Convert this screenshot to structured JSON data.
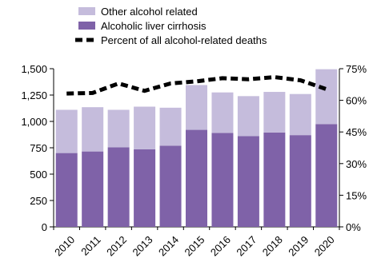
{
  "chart_data": {
    "type": "bar",
    "stacked": true,
    "categories": [
      "2010",
      "2011",
      "2012",
      "2013",
      "2014",
      "2015",
      "2016",
      "2017",
      "2018",
      "2019",
      "2020"
    ],
    "series": [
      {
        "name": "Alcoholic liver cirrhosis",
        "type": "bar",
        "axis": "left",
        "color": "#7f62a8",
        "values": [
          700,
          715,
          755,
          735,
          770,
          920,
          890,
          860,
          895,
          870,
          975
        ]
      },
      {
        "name": "Other alcohol related",
        "type": "bar",
        "axis": "left",
        "color": "#c5bcdc",
        "values": [
          410,
          420,
          355,
          405,
          360,
          425,
          385,
          380,
          385,
          390,
          520
        ]
      },
      {
        "name": "Percent of all alcohol-related deaths",
        "type": "line",
        "axis": "right",
        "color": "#000000",
        "line_style": "dashed",
        "values": [
          63.2,
          63.5,
          68.0,
          64.5,
          68.0,
          69.0,
          70.5,
          70.0,
          71.0,
          69.5,
          65.3
        ]
      }
    ],
    "y_left": {
      "ylim": [
        0,
        1500
      ],
      "ticks": [
        0,
        250,
        500,
        750,
        1000,
        1250,
        1500
      ],
      "tick_labels": [
        "0",
        "250",
        "500",
        "750",
        "1,000",
        "1,250",
        "1,500"
      ]
    },
    "y_right": {
      "ylim": [
        0,
        75
      ],
      "ticks": [
        0,
        15,
        30,
        45,
        60,
        75
      ],
      "tick_labels": [
        "0%",
        "15%",
        "30%",
        "45%",
        "60%",
        "75%"
      ]
    },
    "legend": {
      "placement": "top",
      "entries": [
        {
          "label": "Other alcohol related",
          "color": "#c5bcdc",
          "marker": "rect"
        },
        {
          "label": "Alcoholic liver cirrhosis",
          "color": "#7f62a8",
          "marker": "rect"
        },
        {
          "label": "Percent of all alcohol-related deaths",
          "color": "#000000",
          "marker": "dashed-line"
        }
      ]
    },
    "grid": false
  }
}
